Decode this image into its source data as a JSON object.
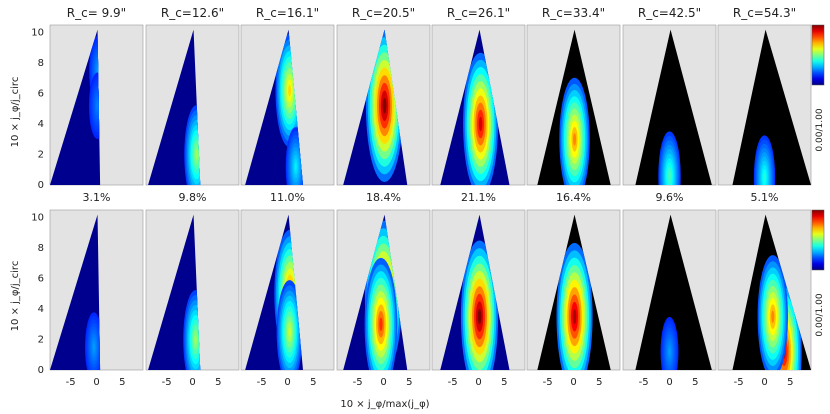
{
  "chart_data": {
    "type": "heatmap",
    "rows": 2,
    "columns": 8,
    "radius_labels": [
      "R_c= 9.9\"",
      "R_c=12.6\"",
      "R_c=16.1\"",
      "R_c=20.5\"",
      "R_c=26.1\"",
      "R_c=33.4\"",
      "R_c=42.5\"",
      "R_c=54.3\""
    ],
    "fractions": [
      "3.1%",
      "9.8%",
      "11.0%",
      "18.4%",
      "21.1%",
      "16.4%",
      "9.6%",
      "5.1%"
    ],
    "xlabel": "10 × j_φ/max(j_φ)",
    "ylabel": "10 × j_φ/j_circ",
    "xticks": [
      "-5",
      "0",
      "5"
    ],
    "xlim": [
      -9,
      9
    ],
    "yticks": [
      "0",
      "2",
      "4",
      "6",
      "8",
      "10"
    ],
    "ylim": [
      0,
      10.5
    ],
    "colorbar_label": "0.00/1.00",
    "colormap": "jet",
    "panel_background": "#e3e3e3",
    "top_row_peaks": [
      [
        {
          "x": 0.3,
          "y": 7.5,
          "w": 0.15
        },
        {
          "x": 0.2,
          "y": 5.2,
          "w": 0.12
        }
      ],
      [
        {
          "x": 0.8,
          "y": 2.0,
          "w": 0.45
        }
      ],
      [
        {
          "x": 0.4,
          "y": 6.2,
          "w": 0.6
        },
        {
          "x": 1.6,
          "y": 1.2,
          "w": 0.25
        }
      ],
      [
        {
          "x": 0.2,
          "y": 5.2,
          "w": 1.0
        }
      ],
      [
        {
          "x": 0.4,
          "y": 4.0,
          "w": 0.9
        }
      ],
      [
        {
          "x": 0.2,
          "y": 3.0,
          "w": 0.7
        }
      ],
      [
        {
          "x": 0.0,
          "y": 0.6,
          "w": 0.35
        }
      ],
      [
        {
          "x": 0.0,
          "y": 0.5,
          "w": 0.3
        }
      ]
    ],
    "bottom_row_peaks": [
      [
        {
          "x": -0.5,
          "y": 1.5,
          "w": 0.15
        }
      ],
      [
        {
          "x": 0.6,
          "y": 2.0,
          "w": 0.45
        }
      ],
      [
        {
          "x": 0.5,
          "y": 5.0,
          "w": 0.75
        },
        {
          "x": 0.4,
          "y": 2.5,
          "w": 0.5
        }
      ],
      [
        {
          "x": 0.0,
          "y": 4.8,
          "w": 1.0
        },
        {
          "x": -0.5,
          "y": 3.0,
          "w": 0.8
        }
      ],
      [
        {
          "x": 0.2,
          "y": 3.5,
          "w": 1.0
        }
      ],
      [
        {
          "x": 0.2,
          "y": 3.5,
          "w": 0.95
        }
      ],
      [
        {
          "x": 0.0,
          "y": 1.2,
          "w": 0.15
        }
      ],
      [
        {
          "x": 3.8,
          "y": 1.2,
          "w": 0.9
        },
        {
          "x": 1.6,
          "y": 3.5,
          "w": 0.7
        }
      ]
    ]
  }
}
